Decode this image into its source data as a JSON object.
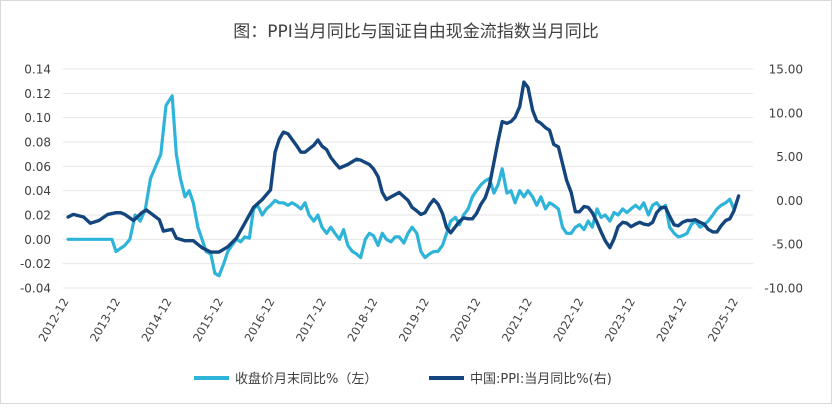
{
  "chart_data": {
    "type": "line",
    "title": "图：PPI当月同比与国证自由现金流指数当月同比",
    "xlabel": "",
    "ylabel": "",
    "x_tick_labels": [
      "2012-12",
      "2013-12",
      "2014-12",
      "2015-12",
      "2016-12",
      "2017-12",
      "2018-12",
      "2019-12",
      "2020-12",
      "2021-12",
      "2022-12",
      "2023-12",
      "2024-12",
      "2025-12"
    ],
    "left_axis": {
      "ylim": [
        -0.04,
        0.14
      ],
      "ticks": [
        "-0.04",
        "-0.02",
        "0.00",
        "0.02",
        "0.04",
        "0.06",
        "0.08",
        "0.10",
        "0.12",
        "0.14"
      ]
    },
    "right_axis": {
      "ylim": [
        -10,
        15
      ],
      "ticks": [
        "-10.00",
        "-5.00",
        "0.00",
        "5.00",
        "10.00",
        "15.00"
      ]
    },
    "legend_position": "bottom",
    "series": [
      {
        "name": "收盘价月末同比%（左）",
        "axis": "left",
        "color": "#2eb4d8",
        "points": [
          [
            2012.9,
            0.0
          ],
          [
            2013.2,
            0.0
          ],
          [
            2013.5,
            0.0
          ],
          [
            2013.75,
            0.0
          ],
          [
            2013.83,
            -0.01
          ],
          [
            2014.0,
            -0.005
          ],
          [
            2014.1,
            0.0
          ],
          [
            2014.2,
            0.02
          ],
          [
            2014.3,
            0.015
          ],
          [
            2014.4,
            0.025
          ],
          [
            2014.5,
            0.05
          ],
          [
            2014.6,
            0.06
          ],
          [
            2014.7,
            0.07
          ],
          [
            2014.8,
            0.11
          ],
          [
            2014.92,
            0.118
          ],
          [
            2015.0,
            0.07
          ],
          [
            2015.08,
            0.05
          ],
          [
            2015.17,
            0.035
          ],
          [
            2015.25,
            0.04
          ],
          [
            2015.33,
            0.03
          ],
          [
            2015.42,
            0.01
          ],
          [
            2015.5,
            0.0
          ],
          [
            2015.58,
            -0.01
          ],
          [
            2015.67,
            -0.012
          ],
          [
            2015.75,
            -0.028
          ],
          [
            2015.83,
            -0.03
          ],
          [
            2015.92,
            -0.02
          ],
          [
            2016.0,
            -0.01
          ],
          [
            2016.08,
            -0.005
          ],
          [
            2016.17,
            0.0
          ],
          [
            2016.25,
            -0.002
          ],
          [
            2016.33,
            0.002
          ],
          [
            2016.42,
            0.001
          ],
          [
            2016.5,
            0.025
          ],
          [
            2016.58,
            0.028
          ],
          [
            2016.67,
            0.02
          ],
          [
            2016.75,
            0.025
          ],
          [
            2016.83,
            0.028
          ],
          [
            2016.92,
            0.032
          ],
          [
            2017.0,
            0.03
          ],
          [
            2017.08,
            0.03
          ],
          [
            2017.17,
            0.028
          ],
          [
            2017.25,
            0.03
          ],
          [
            2017.33,
            0.028
          ],
          [
            2017.42,
            0.025
          ],
          [
            2017.5,
            0.03
          ],
          [
            2017.58,
            0.02
          ],
          [
            2017.67,
            0.015
          ],
          [
            2017.75,
            0.02
          ],
          [
            2017.83,
            0.01
          ],
          [
            2017.92,
            0.005
          ],
          [
            2018.0,
            0.01
          ],
          [
            2018.08,
            0.005
          ],
          [
            2018.17,
            0.0
          ],
          [
            2018.25,
            0.008
          ],
          [
            2018.33,
            -0.005
          ],
          [
            2018.42,
            -0.01
          ],
          [
            2018.5,
            -0.012
          ],
          [
            2018.58,
            -0.015
          ],
          [
            2018.67,
            0.0
          ],
          [
            2018.75,
            0.005
          ],
          [
            2018.83,
            0.003
          ],
          [
            2018.92,
            -0.005
          ],
          [
            2019.0,
            0.005
          ],
          [
            2019.08,
            0.0
          ],
          [
            2019.17,
            -0.002
          ],
          [
            2019.25,
            0.002
          ],
          [
            2019.33,
            0.002
          ],
          [
            2019.42,
            -0.003
          ],
          [
            2019.5,
            0.005
          ],
          [
            2019.58,
            0.01
          ],
          [
            2019.67,
            0.005
          ],
          [
            2019.75,
            -0.01
          ],
          [
            2019.83,
            -0.015
          ],
          [
            2019.92,
            -0.012
          ],
          [
            2020.0,
            -0.01
          ],
          [
            2020.08,
            -0.01
          ],
          [
            2020.17,
            -0.005
          ],
          [
            2020.25,
            0.005
          ],
          [
            2020.33,
            0.015
          ],
          [
            2020.42,
            0.018
          ],
          [
            2020.5,
            0.012
          ],
          [
            2020.58,
            0.02
          ],
          [
            2020.67,
            0.025
          ],
          [
            2020.75,
            0.035
          ],
          [
            2020.83,
            0.04
          ],
          [
            2020.92,
            0.045
          ],
          [
            2021.0,
            0.048
          ],
          [
            2021.08,
            0.05
          ],
          [
            2021.17,
            0.038
          ],
          [
            2021.25,
            0.045
          ],
          [
            2021.33,
            0.058
          ],
          [
            2021.42,
            0.038
          ],
          [
            2021.5,
            0.04
          ],
          [
            2021.58,
            0.03
          ],
          [
            2021.67,
            0.04
          ],
          [
            2021.75,
            0.035
          ],
          [
            2021.83,
            0.04
          ],
          [
            2021.92,
            0.035
          ],
          [
            2022.0,
            0.028
          ],
          [
            2022.08,
            0.035
          ],
          [
            2022.17,
            0.025
          ],
          [
            2022.25,
            0.03
          ],
          [
            2022.33,
            0.028
          ],
          [
            2022.42,
            0.025
          ],
          [
            2022.5,
            0.01
          ],
          [
            2022.58,
            0.005
          ],
          [
            2022.67,
            0.005
          ],
          [
            2022.75,
            0.01
          ],
          [
            2022.83,
            0.012
          ],
          [
            2022.92,
            0.008
          ],
          [
            2023.0,
            0.015
          ],
          [
            2023.08,
            0.01
          ],
          [
            2023.17,
            0.025
          ],
          [
            2023.25,
            0.018
          ],
          [
            2023.33,
            0.02
          ],
          [
            2023.42,
            0.015
          ],
          [
            2023.5,
            0.022
          ],
          [
            2023.58,
            0.02
          ],
          [
            2023.67,
            0.025
          ],
          [
            2023.75,
            0.022
          ],
          [
            2023.83,
            0.025
          ],
          [
            2023.92,
            0.028
          ],
          [
            2024.0,
            0.025
          ],
          [
            2024.08,
            0.03
          ],
          [
            2024.17,
            0.02
          ],
          [
            2024.25,
            0.028
          ],
          [
            2024.33,
            0.03
          ],
          [
            2024.42,
            0.025
          ],
          [
            2024.5,
            0.028
          ],
          [
            2024.58,
            0.01
          ],
          [
            2024.67,
            0.005
          ],
          [
            2024.75,
            0.002
          ],
          [
            2024.83,
            0.003
          ],
          [
            2024.92,
            0.005
          ],
          [
            2025.0,
            0.012
          ],
          [
            2025.08,
            0.015
          ],
          [
            2025.17,
            0.01
          ],
          [
            2025.25,
            0.012
          ],
          [
            2025.33,
            0.015
          ],
          [
            2025.42,
            0.02
          ],
          [
            2025.5,
            0.025
          ],
          [
            2025.58,
            0.028
          ],
          [
            2025.67,
            0.03
          ],
          [
            2025.75,
            0.033
          ],
          [
            2025.83,
            0.025
          ]
        ]
      },
      {
        "name": "中国:PPI:当月同比%(右)",
        "axis": "right",
        "color": "#14457c",
        "points": [
          [
            2012.9,
            -1.9
          ],
          [
            2013.0,
            -1.6
          ],
          [
            2013.2,
            -1.9
          ],
          [
            2013.33,
            -2.6
          ],
          [
            2013.5,
            -2.3
          ],
          [
            2013.67,
            -1.6
          ],
          [
            2013.83,
            -1.4
          ],
          [
            2013.92,
            -1.4
          ],
          [
            2014.0,
            -1.6
          ],
          [
            2014.17,
            -2.3
          ],
          [
            2014.33,
            -1.4
          ],
          [
            2014.42,
            -1.1
          ],
          [
            2014.58,
            -1.8
          ],
          [
            2014.67,
            -2.2
          ],
          [
            2014.75,
            -3.5
          ],
          [
            2014.92,
            -3.3
          ],
          [
            2015.0,
            -4.3
          ],
          [
            2015.17,
            -4.6
          ],
          [
            2015.33,
            -4.6
          ],
          [
            2015.5,
            -5.4
          ],
          [
            2015.67,
            -5.9
          ],
          [
            2015.83,
            -5.9
          ],
          [
            2016.0,
            -5.3
          ],
          [
            2016.17,
            -4.3
          ],
          [
            2016.33,
            -2.6
          ],
          [
            2016.5,
            -0.8
          ],
          [
            2016.67,
            0.1
          ],
          [
            2016.83,
            1.2
          ],
          [
            2016.92,
            5.5
          ],
          [
            2017.0,
            7.0
          ],
          [
            2017.08,
            7.8
          ],
          [
            2017.17,
            7.6
          ],
          [
            2017.33,
            6.3
          ],
          [
            2017.42,
            5.5
          ],
          [
            2017.5,
            5.5
          ],
          [
            2017.67,
            6.3
          ],
          [
            2017.75,
            6.9
          ],
          [
            2017.83,
            6.2
          ],
          [
            2017.92,
            5.8
          ],
          [
            2018.0,
            4.9
          ],
          [
            2018.08,
            4.3
          ],
          [
            2018.17,
            3.7
          ],
          [
            2018.33,
            4.1
          ],
          [
            2018.5,
            4.7
          ],
          [
            2018.58,
            4.6
          ],
          [
            2018.75,
            4.1
          ],
          [
            2018.83,
            3.6
          ],
          [
            2018.92,
            2.7
          ],
          [
            2019.0,
            0.9
          ],
          [
            2019.08,
            0.1
          ],
          [
            2019.17,
            0.4
          ],
          [
            2019.33,
            0.9
          ],
          [
            2019.5,
            0.0
          ],
          [
            2019.58,
            -0.8
          ],
          [
            2019.67,
            -1.2
          ],
          [
            2019.75,
            -1.6
          ],
          [
            2019.83,
            -1.4
          ],
          [
            2019.92,
            -0.5
          ],
          [
            2020.0,
            0.1
          ],
          [
            2020.08,
            -0.4
          ],
          [
            2020.17,
            -1.5
          ],
          [
            2020.25,
            -3.1
          ],
          [
            2020.33,
            -3.7
          ],
          [
            2020.42,
            -3.0
          ],
          [
            2020.5,
            -2.4
          ],
          [
            2020.58,
            -2.0
          ],
          [
            2020.67,
            -2.1
          ],
          [
            2020.75,
            -2.1
          ],
          [
            2020.83,
            -1.5
          ],
          [
            2020.92,
            -0.4
          ],
          [
            2021.0,
            0.3
          ],
          [
            2021.08,
            1.7
          ],
          [
            2021.17,
            4.4
          ],
          [
            2021.25,
            6.8
          ],
          [
            2021.33,
            9.0
          ],
          [
            2021.42,
            8.8
          ],
          [
            2021.5,
            9.0
          ],
          [
            2021.58,
            9.5
          ],
          [
            2021.67,
            10.7
          ],
          [
            2021.75,
            13.5
          ],
          [
            2021.83,
            12.9
          ],
          [
            2021.92,
            10.3
          ],
          [
            2022.0,
            9.1
          ],
          [
            2022.08,
            8.8
          ],
          [
            2022.17,
            8.3
          ],
          [
            2022.25,
            8.0
          ],
          [
            2022.33,
            6.4
          ],
          [
            2022.42,
            6.1
          ],
          [
            2022.5,
            4.2
          ],
          [
            2022.58,
            2.3
          ],
          [
            2022.67,
            0.9
          ],
          [
            2022.75,
            -1.3
          ],
          [
            2022.83,
            -1.3
          ],
          [
            2022.92,
            -0.7
          ],
          [
            2023.0,
            -0.8
          ],
          [
            2023.08,
            -1.4
          ],
          [
            2023.17,
            -2.5
          ],
          [
            2023.25,
            -3.6
          ],
          [
            2023.33,
            -4.6
          ],
          [
            2023.42,
            -5.4
          ],
          [
            2023.5,
            -4.4
          ],
          [
            2023.58,
            -3.0
          ],
          [
            2023.67,
            -2.5
          ],
          [
            2023.75,
            -2.6
          ],
          [
            2023.83,
            -3.0
          ],
          [
            2023.92,
            -2.7
          ],
          [
            2024.0,
            -2.5
          ],
          [
            2024.08,
            -2.7
          ],
          [
            2024.17,
            -2.8
          ],
          [
            2024.25,
            -2.5
          ],
          [
            2024.33,
            -1.4
          ],
          [
            2024.42,
            -0.8
          ],
          [
            2024.5,
            -0.8
          ],
          [
            2024.58,
            -1.8
          ],
          [
            2024.67,
            -2.8
          ],
          [
            2024.75,
            -2.9
          ],
          [
            2024.83,
            -2.5
          ],
          [
            2024.92,
            -2.3
          ],
          [
            2025.0,
            -2.3
          ],
          [
            2025.08,
            -2.2
          ],
          [
            2025.17,
            -2.5
          ],
          [
            2025.25,
            -2.7
          ],
          [
            2025.33,
            -3.3
          ],
          [
            2025.42,
            -3.6
          ],
          [
            2025.5,
            -3.6
          ],
          [
            2025.58,
            -2.9
          ],
          [
            2025.67,
            -2.3
          ],
          [
            2025.75,
            -2.1
          ],
          [
            2025.83,
            -1.2
          ],
          [
            2025.92,
            0.5
          ]
        ]
      }
    ]
  }
}
